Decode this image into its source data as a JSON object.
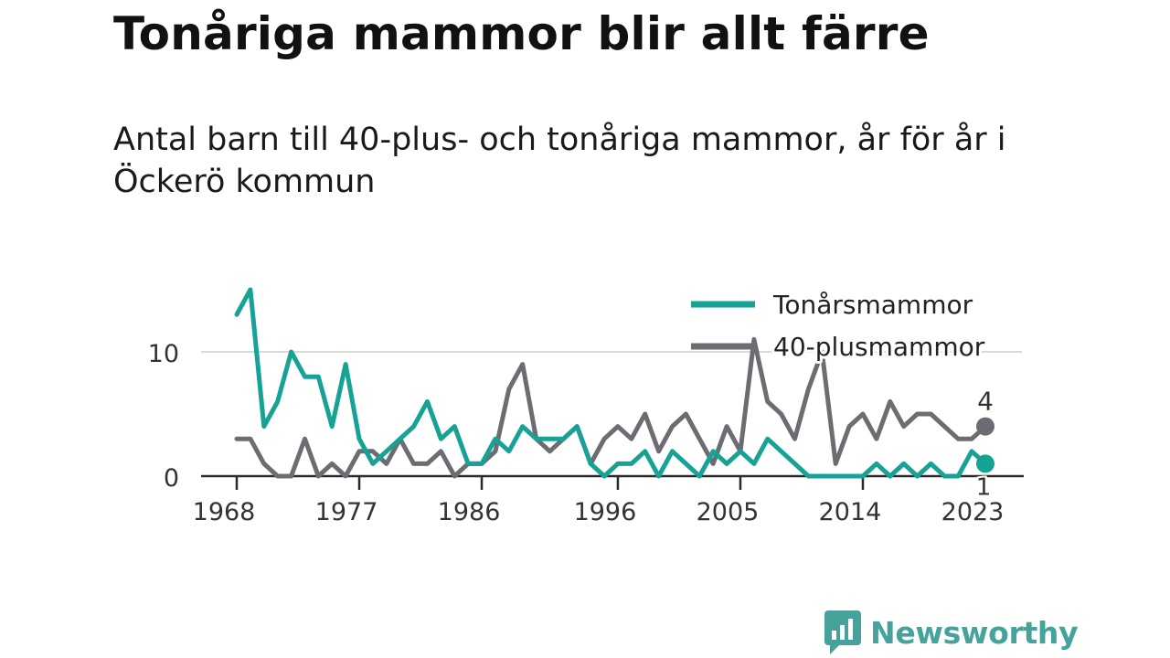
{
  "title": "Tonåriga mammor blir allt färre",
  "subtitle": "Antal barn till 40-plus- och tonåriga mammor, år för år i Öckerö kommun",
  "brand": {
    "name": "Newsworthy",
    "icon": "newsworthy-logo-icon",
    "color": "#45a39b"
  },
  "chart_data": {
    "type": "line",
    "x_ticks": [
      1968,
      1977,
      1986,
      1996,
      2005,
      2014,
      2023
    ],
    "y_ticks": [
      0,
      10
    ],
    "ylim": [
      0,
      16
    ],
    "xlim": [
      1968,
      2023
    ],
    "grid": true,
    "legend": "top-right",
    "x": [
      1968,
      1969,
      1970,
      1971,
      1972,
      1973,
      1974,
      1975,
      1976,
      1977,
      1978,
      1979,
      1980,
      1981,
      1982,
      1983,
      1984,
      1985,
      1986,
      1987,
      1988,
      1989,
      1990,
      1991,
      1992,
      1993,
      1994,
      1995,
      1996,
      1997,
      1998,
      1999,
      2000,
      2001,
      2002,
      2003,
      2004,
      2005,
      2006,
      2007,
      2008,
      2009,
      2010,
      2011,
      2012,
      2013,
      2014,
      2015,
      2016,
      2017,
      2018,
      2019,
      2020,
      2021,
      2022,
      2023
    ],
    "series": [
      {
        "name": "Tonårsmammor",
        "color": "#16a295",
        "values": [
          13,
          15,
          4,
          6,
          10,
          8,
          8,
          4,
          9,
          3,
          1,
          2,
          3,
          4,
          6,
          3,
          4,
          1,
          1,
          3,
          2,
          4,
          3,
          3,
          3,
          4,
          1,
          0,
          1,
          1,
          2,
          0,
          2,
          1,
          0,
          2,
          1,
          2,
          1,
          3,
          2,
          1,
          0,
          0,
          0,
          0,
          0,
          1,
          0,
          1,
          0,
          1,
          0,
          0,
          2,
          1
        ],
        "end_label": "1"
      },
      {
        "name": "40-plusmammor",
        "color": "#6d6c73",
        "values": [
          3,
          3,
          1,
          0,
          0,
          3,
          0,
          1,
          0,
          2,
          2,
          1,
          3,
          1,
          1,
          2,
          0,
          1,
          1,
          2,
          7,
          9,
          3,
          2,
          3,
          4,
          1,
          3,
          4,
          3,
          5,
          2,
          4,
          5,
          3,
          1,
          4,
          2,
          11,
          6,
          5,
          3,
          7,
          10,
          1,
          4,
          5,
          3,
          6,
          4,
          5,
          5,
          4,
          3,
          3,
          4
        ],
        "end_label": "4"
      }
    ]
  }
}
